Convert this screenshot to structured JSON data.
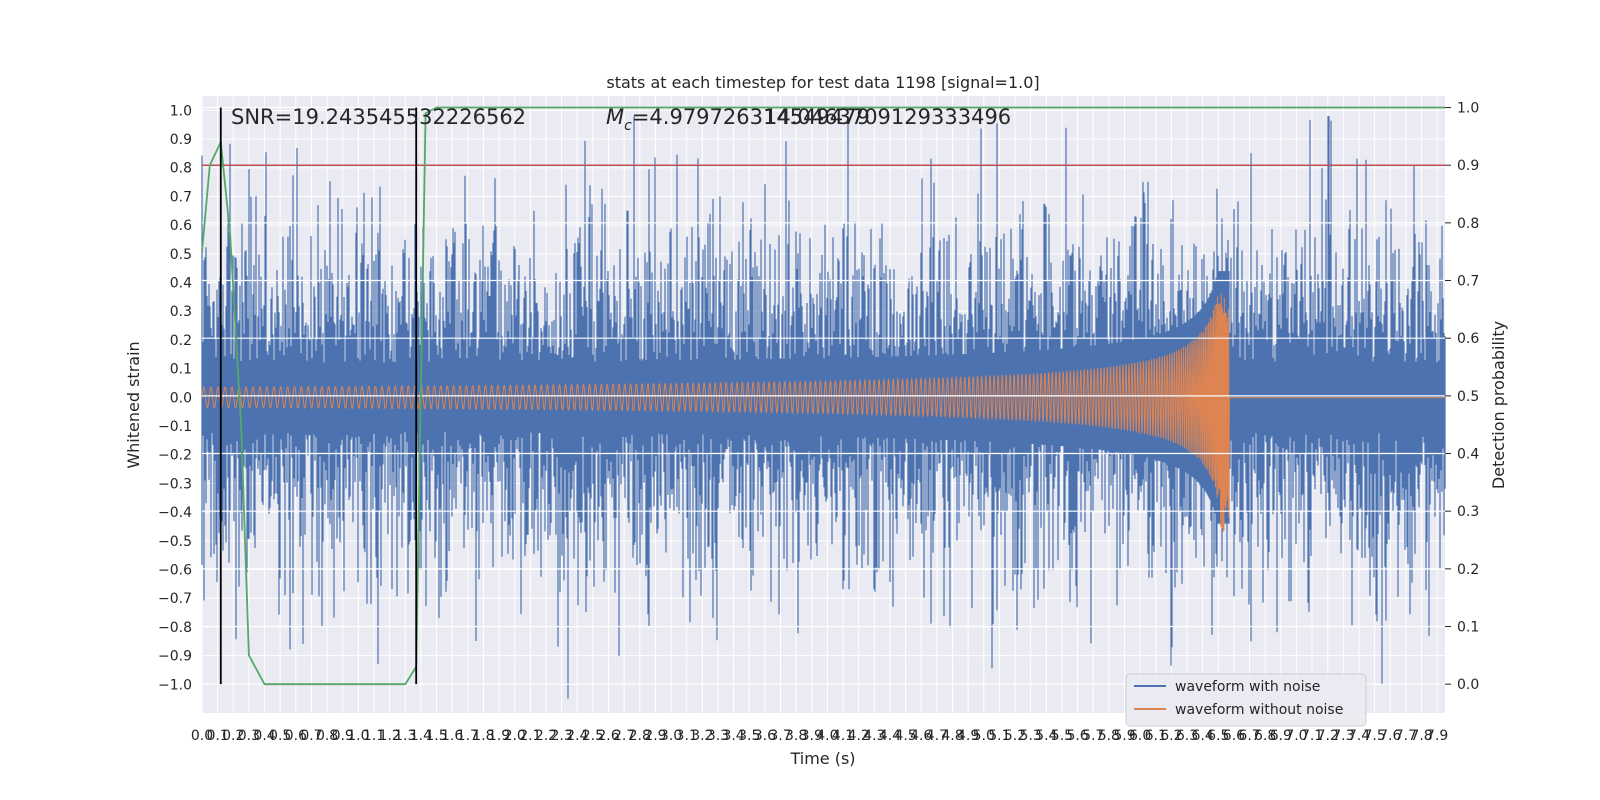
{
  "chart_data": {
    "type": "line",
    "title": "stats at each timestep for test data 1198 [signal=1.0]",
    "xlabel": "Time (s)",
    "ylabel_left": "Whitened strain",
    "ylabel_right": "Detection probability",
    "xlim": [
      0.0,
      7.95
    ],
    "ylim_left": [
      -1.1,
      1.05
    ],
    "ylim_right": [
      -0.05,
      1.02
    ],
    "x_tick_step": 0.1,
    "y_left_ticks": [
      -1.0,
      -0.9,
      -0.8,
      -0.7,
      -0.6,
      -0.5,
      -0.4,
      -0.3,
      -0.2,
      -0.1,
      0.0,
      0.1,
      0.2,
      0.3,
      0.4,
      0.5,
      0.6,
      0.7,
      0.8,
      0.9,
      1.0
    ],
    "y_right_ticks": [
      0.0,
      0.1,
      0.2,
      0.3,
      0.4,
      0.5,
      0.6,
      0.7,
      0.8,
      0.9,
      1.0
    ],
    "annotations": {
      "snr": "SNR=19.243545532226562",
      "mc_prefix": "M",
      "mc_sub": "c",
      "mc_value": "=4.979726314549479",
      "overlap": "14.0463709129333496"
    },
    "threshold": 0.9,
    "vertical_markers": [
      0.12,
      1.37
    ],
    "merger_time": 6.57,
    "series": [
      {
        "name": "waveform with noise",
        "color": "#4c72b0",
        "kind": "noise",
        "noise_std": 0.17,
        "mean_abs_peak": 0.45
      },
      {
        "name": "waveform without noise",
        "color": "#dd8452",
        "kind": "chirp",
        "start_amplitude": 0.035,
        "peak_amplitude_pos": 0.36,
        "peak_amplitude_neg": -0.47
      },
      {
        "name": "detection probability",
        "color": "#55a868",
        "kind": "probability",
        "x": [
          0.0,
          0.05,
          0.12,
          0.18,
          0.25,
          0.3,
          0.4,
          0.6,
          0.8,
          1.0,
          1.1,
          1.2,
          1.3,
          1.37,
          1.43,
          1.5,
          2.0,
          3.0,
          4.0,
          5.0,
          6.0,
          7.0,
          7.95
        ],
        "y": [
          0.75,
          0.9,
          0.94,
          0.78,
          0.45,
          0.05,
          0.0,
          0.0,
          0.0,
          0.0,
          0.0,
          0.0,
          0.0,
          0.03,
          0.99,
          1.0,
          1.0,
          1.0,
          1.0,
          1.0,
          1.0,
          1.0,
          1.0
        ]
      }
    ],
    "legend": {
      "placement": "lower-right",
      "items": [
        {
          "label": "waveform with noise",
          "color": "#4c72b0"
        },
        {
          "label": "waveform without noise",
          "color": "#dd8452"
        }
      ]
    },
    "colors": {
      "background": "#eaeaf2",
      "grid": "#ffffff",
      "threshold": "#c44e52",
      "markers": "#000000"
    }
  }
}
